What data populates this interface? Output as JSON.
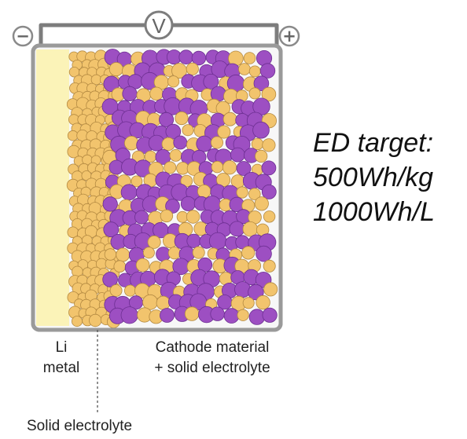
{
  "voltmeter": {
    "symbol": "V"
  },
  "terminals": {
    "negative": "−",
    "positive": "+"
  },
  "labels": {
    "li_metal": [
      "Li",
      "metal"
    ],
    "cathode": [
      "Cathode material",
      "+ solid electrolyte"
    ],
    "solid_electrolyte": "Solid electrolyte"
  },
  "energy_density": {
    "title": "ED target:",
    "gravimetric": "500Wh/kg",
    "volumetric": "1000Wh/L"
  },
  "colors": {
    "li_metal": "#fbf3b8",
    "electrolyte_particle": "#f2c46d",
    "electrolyte_outline": "#b48a42",
    "cathode_particle": "#9d4fc2",
    "cell_frame": "#9a9a9a",
    "wire": "#7d7d7d"
  }
}
